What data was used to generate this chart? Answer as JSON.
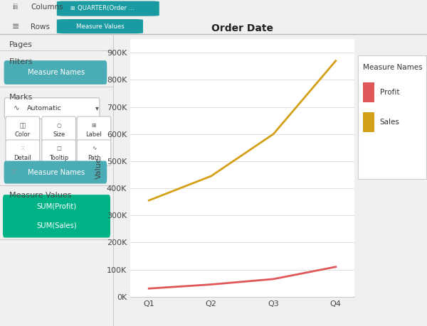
{
  "title": "Order Date",
  "xlabel_categories": [
    "Q1",
    "Q2",
    "Q3",
    "Q4"
  ],
  "profit_values": [
    30000,
    45000,
    65000,
    110000
  ],
  "sales_values": [
    355000,
    445000,
    600000,
    870000
  ],
  "profit_color": "#e15759",
  "sales_color": "#d4a017",
  "ylabel": "Value",
  "ylim": [
    0,
    950000
  ],
  "yticks": [
    0,
    100000,
    200000,
    300000,
    400000,
    500000,
    600000,
    700000,
    800000,
    900000
  ],
  "ytick_labels": [
    "0K",
    "100K",
    "200K",
    "300K",
    "400K",
    "500K",
    "600K",
    "700K",
    "800K",
    "900K"
  ],
  "bg_color": "#f0f0f0",
  "plot_bg_color": "#ffffff",
  "teal_color": "#1a9ba1",
  "green_color": "#00b386",
  "filter_teal": "#4aacb5",
  "measure_names_teal": "#4aacb5",
  "top_bar_color": "#e8e8e8",
  "columns_text": "QUARTER(Order ...",
  "rows_text": "Measure Values",
  "pages_text": "Pages",
  "filters_text": "Filters",
  "marks_text": "Marks",
  "measure_values_text": "Measure Values",
  "measure_names_text": "Measure Names",
  "sum_profit_text": "SUM(Profit)",
  "sum_sales_text": "SUM(Sales)",
  "automatic_text": "Automatic",
  "color_text": "Color",
  "size_text": "Size",
  "label_text": "Label",
  "detail_text": "Detail",
  "tooltip_text": "Tooltip",
  "path_text": "Path",
  "legend_title": "Measure Names",
  "legend_profit": "Profit",
  "legend_sales": "Sales",
  "line_width": 2.0,
  "grid_color": "#e0e0e0"
}
